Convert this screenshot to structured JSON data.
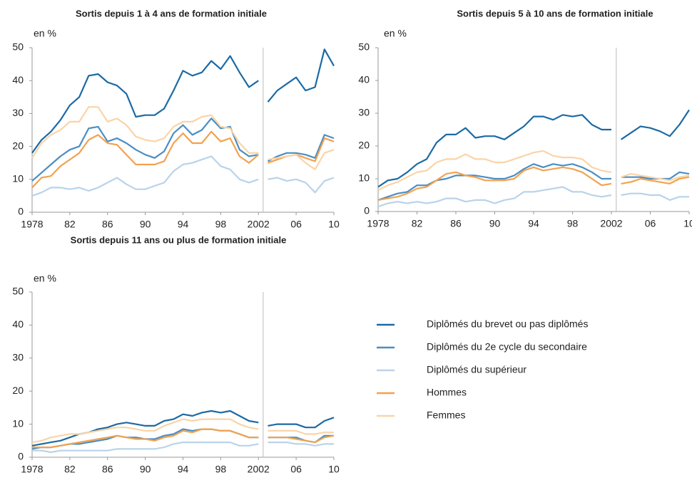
{
  "legend": {
    "items": [
      {
        "name": "Diplômés du brevet ou pas diplômés",
        "color": "#1b6aa5"
      },
      {
        "name": "Diplômés du 2e cycle du secondaire",
        "color": "#4a8ec4"
      },
      {
        "name": "Diplômés du supérieur",
        "color": "#b9d3ea"
      },
      {
        "name": "Hommes",
        "color": "#f2a24f"
      },
      {
        "name": "Femmes",
        "color": "#fad4a8"
      }
    ]
  },
  "chart_data": [
    {
      "type": "line",
      "title": "Sortis depuis 1 à 4 ans de formation initiale",
      "ylabel": "en %",
      "x": [
        1978,
        1979,
        1980,
        1981,
        1982,
        1983,
        1984,
        1985,
        1986,
        1987,
        1988,
        1989,
        1990,
        1991,
        1992,
        1993,
        1994,
        1995,
        1996,
        1997,
        1998,
        1999,
        2000,
        2001,
        2002,
        2003,
        2004,
        2005,
        2006,
        2007,
        2008,
        2009,
        2010
      ],
      "xlim": [
        1978,
        2010
      ],
      "xbreak": 2002.5,
      "xticks": [
        {
          "value": 1978,
          "label": "1978"
        },
        {
          "value": 1982,
          "label": "82"
        },
        {
          "value": 1986,
          "label": "86"
        },
        {
          "value": 1990,
          "label": "90"
        },
        {
          "value": 1994,
          "label": "94"
        },
        {
          "value": 1998,
          "label": "98"
        },
        {
          "value": 2002,
          "label": "2002"
        },
        {
          "value": 2006,
          "label": "06"
        },
        {
          "value": 2010,
          "label": "10"
        }
      ],
      "ylim": [
        0,
        50
      ],
      "yticks": [
        0,
        10,
        20,
        30,
        40,
        50
      ],
      "series": [
        {
          "values": [
            18,
            22,
            24.5,
            28,
            32.5,
            35,
            41.5,
            42,
            39.5,
            38.5,
            36,
            29,
            29.5,
            29.5,
            31.5,
            37,
            43,
            41.5,
            42.5,
            46,
            43.5,
            47.5,
            42.5,
            38,
            40,
            33.5,
            37,
            39,
            41,
            37,
            38,
            49.5,
            44.5
          ]
        },
        {
          "values": [
            9.5,
            12,
            14.5,
            17,
            19,
            20,
            25.5,
            26,
            21.5,
            22.5,
            21,
            19,
            17.5,
            16.5,
            18.5,
            24,
            26.5,
            23.5,
            25,
            28.5,
            25.5,
            26,
            19,
            17,
            17.5,
            15.5,
            17,
            18,
            18,
            17.5,
            16.5,
            23.5,
            22.5
          ]
        },
        {
          "values": [
            5,
            6,
            7.5,
            7.5,
            7,
            7.5,
            6.5,
            7.5,
            9,
            10.5,
            8.5,
            7,
            7,
            8,
            9,
            12.5,
            14.5,
            15,
            16,
            17,
            14,
            13,
            10,
            9,
            10,
            10,
            10.5,
            9.5,
            10,
            9,
            6,
            9.5,
            10.5
          ]
        },
        {
          "values": [
            7.5,
            10.5,
            11,
            14,
            16,
            18,
            22,
            23.5,
            21,
            20.5,
            17.5,
            14.5,
            14.5,
            14.5,
            15.5,
            21,
            24,
            21,
            21,
            24.5,
            21.5,
            22.5,
            17,
            15,
            17.5,
            15,
            16,
            17,
            17.5,
            16.5,
            15.5,
            22.5,
            21.5
          ]
        },
        {
          "values": [
            16.5,
            21,
            23.5,
            25,
            27.5,
            27.5,
            32,
            32,
            27.5,
            28.5,
            26.5,
            23,
            22,
            21.5,
            22.5,
            26,
            27.5,
            27.5,
            29,
            29.5,
            26,
            25.5,
            21,
            18,
            18,
            16,
            16.5,
            17,
            17.5,
            15,
            13,
            18,
            19
          ]
        }
      ]
    },
    {
      "type": "line",
      "title": "Sortis depuis 5 à 10 ans de formation initiale",
      "ylabel": "en %",
      "x": [
        1978,
        1979,
        1980,
        1981,
        1982,
        1983,
        1984,
        1985,
        1986,
        1987,
        1988,
        1989,
        1990,
        1991,
        1992,
        1993,
        1994,
        1995,
        1996,
        1997,
        1998,
        1999,
        2000,
        2001,
        2002,
        2003,
        2004,
        2005,
        2006,
        2007,
        2008,
        2009,
        2010
      ],
      "xlim": [
        1978,
        2010
      ],
      "xbreak": 2002.5,
      "xticks": [
        {
          "value": 1978,
          "label": "1978"
        },
        {
          "value": 1982,
          "label": "82"
        },
        {
          "value": 1986,
          "label": "86"
        },
        {
          "value": 1990,
          "label": "90"
        },
        {
          "value": 1994,
          "label": "94"
        },
        {
          "value": 1998,
          "label": "98"
        },
        {
          "value": 2002,
          "label": "2002"
        },
        {
          "value": 2006,
          "label": "06"
        },
        {
          "value": 2010,
          "label": "10"
        }
      ],
      "ylim": [
        0,
        50
      ],
      "yticks": [
        0,
        10,
        20,
        30,
        40,
        50
      ],
      "series": [
        {
          "values": [
            7.5,
            9.5,
            10,
            12,
            14.5,
            16,
            21,
            23.5,
            23.5,
            25.5,
            22.5,
            23,
            23,
            22,
            24,
            26,
            29,
            29,
            28,
            29.5,
            29,
            29.5,
            26.5,
            25,
            25,
            22,
            24,
            26,
            25.5,
            24.5,
            23,
            26.5,
            31
          ]
        },
        {
          "values": [
            3.5,
            4.5,
            5.5,
            6,
            8,
            8,
            9.5,
            10,
            11,
            11,
            11,
            10.5,
            10,
            10,
            11,
            13,
            14.5,
            13.5,
            14.5,
            14,
            14.5,
            13.5,
            12,
            10,
            10,
            10.5,
            10.5,
            10.5,
            10,
            10,
            10,
            12,
            11.5
          ]
        },
        {
          "values": [
            1.5,
            2.5,
            3,
            2.5,
            3,
            2.5,
            3,
            4,
            4,
            3,
            3.5,
            3.5,
            2.5,
            3.5,
            4,
            6,
            6,
            6.5,
            7,
            7.5,
            6,
            6,
            5,
            4.5,
            5,
            5,
            5.5,
            5.5,
            5,
            5,
            3.5,
            4.5,
            4.5
          ]
        },
        {
          "values": [
            3.5,
            4,
            4.5,
            5.5,
            7,
            7.5,
            9.5,
            11.5,
            12,
            11,
            10.5,
            9.5,
            9.5,
            9.5,
            10,
            12.5,
            13.5,
            12.5,
            13,
            13.5,
            13,
            12,
            10,
            8,
            8.5,
            8.5,
            9,
            10,
            9.5,
            9,
            8.5,
            10,
            10.5
          ]
        },
        {
          "values": [
            6.5,
            8,
            9,
            10.5,
            12,
            12.5,
            15,
            16,
            16,
            17.5,
            16,
            16,
            15,
            15,
            16,
            17,
            18,
            18.5,
            17,
            16.5,
            16.5,
            16,
            13.5,
            12.5,
            12,
            10.5,
            11.5,
            11,
            10.5,
            10,
            9.5,
            10.5,
            11
          ]
        }
      ]
    },
    {
      "type": "line",
      "title": "Sortis depuis 11 ans ou plus de formation initiale",
      "ylabel": "en %",
      "x": [
        1978,
        1979,
        1980,
        1981,
        1982,
        1983,
        1984,
        1985,
        1986,
        1987,
        1988,
        1989,
        1990,
        1991,
        1992,
        1993,
        1994,
        1995,
        1996,
        1997,
        1998,
        1999,
        2000,
        2001,
        2002,
        2003,
        2004,
        2005,
        2006,
        2007,
        2008,
        2009,
        2010
      ],
      "xlim": [
        1978,
        2010
      ],
      "xbreak": 2002.5,
      "xticks": [
        {
          "value": 1978,
          "label": "1978"
        },
        {
          "value": 1982,
          "label": "82"
        },
        {
          "value": 1986,
          "label": "86"
        },
        {
          "value": 1990,
          "label": "90"
        },
        {
          "value": 1994,
          "label": "94"
        },
        {
          "value": 1998,
          "label": "98"
        },
        {
          "value": 2002,
          "label": "2002"
        },
        {
          "value": 2006,
          "label": "06"
        },
        {
          "value": 2010,
          "label": "10"
        }
      ],
      "ylim": [
        0,
        50
      ],
      "yticks": [
        0,
        10,
        20,
        30,
        40,
        50
      ],
      "series": [
        {
          "values": [
            3.5,
            4,
            4.5,
            5,
            6,
            7,
            7.5,
            8.5,
            9,
            10,
            10.5,
            10,
            9.5,
            9.5,
            11,
            11.5,
            13,
            12.5,
            13.5,
            14,
            13.5,
            14,
            12.5,
            11,
            10.5,
            9.5,
            10,
            10,
            10,
            9,
            9,
            11,
            12
          ]
        },
        {
          "values": [
            2.5,
            3,
            3,
            3.5,
            4,
            4,
            4.5,
            5,
            5.5,
            6.5,
            6,
            6,
            5.5,
            5.5,
            6.5,
            7,
            8.5,
            8,
            8.5,
            8.5,
            8,
            8,
            7,
            6,
            6,
            6,
            6,
            6,
            6,
            5,
            4.5,
            6.5,
            6.5
          ]
        },
        {
          "values": [
            2,
            2,
            1.5,
            2,
            2,
            2,
            2,
            2,
            2,
            2.5,
            2.5,
            2.5,
            2.5,
            2.5,
            3,
            4,
            4.5,
            4.5,
            4.5,
            4.5,
            4.5,
            4.5,
            3.5,
            3.5,
            4,
            4.5,
            4.5,
            4.5,
            4,
            4,
            3.5,
            4,
            4
          ]
        },
        {
          "values": [
            3,
            3,
            3,
            3.5,
            4,
            4.5,
            5,
            5.5,
            6,
            6.5,
            6,
            5.5,
            5.5,
            5,
            6,
            6.5,
            8,
            7.5,
            8.5,
            8.5,
            8,
            8,
            7,
            6,
            6,
            6,
            6,
            6,
            5.5,
            5,
            4.5,
            6,
            6.5
          ]
        },
        {
          "values": [
            4.5,
            5,
            6,
            6.5,
            7,
            7,
            7.5,
            8,
            8.5,
            9,
            9,
            8.5,
            8,
            8,
            9.5,
            10.5,
            11.5,
            11,
            11.5,
            11.5,
            11.5,
            11.5,
            10,
            9,
            8.5,
            8,
            8,
            8,
            8,
            7,
            7,
            7.5,
            7.5
          ]
        }
      ]
    }
  ]
}
